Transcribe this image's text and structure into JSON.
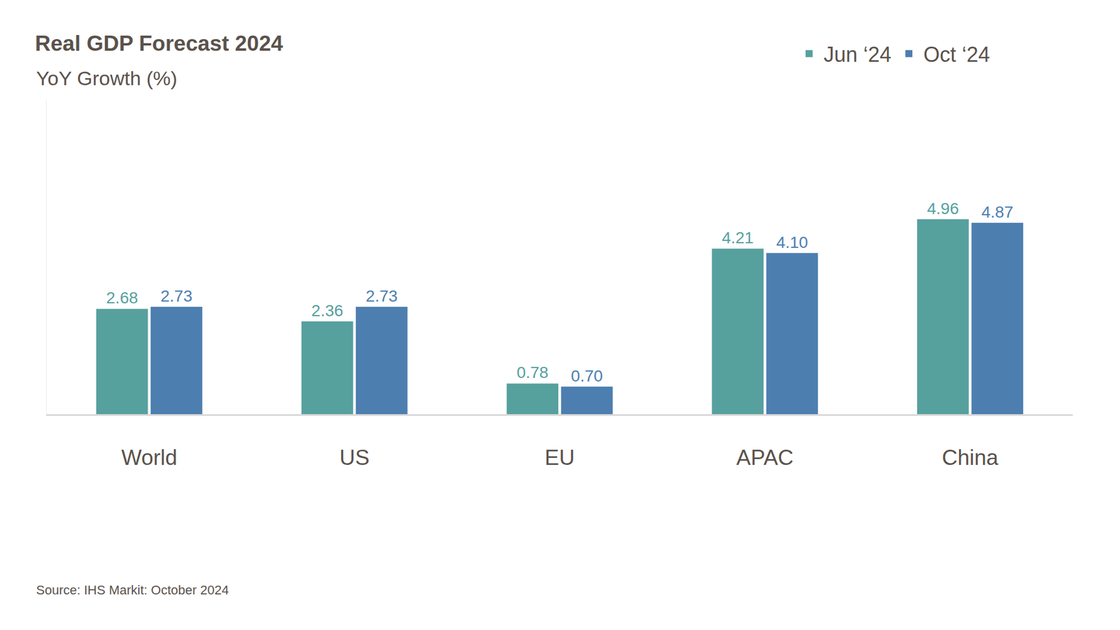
{
  "chart_data": {
    "type": "bar",
    "title": "Real GDP Forecast 2024",
    "subtitle": "YoY Growth (%)",
    "source": "Source: IHS Markit: October 2024",
    "categories": [
      "World",
      "US",
      "EU",
      "APAC",
      "China"
    ],
    "series": [
      {
        "name": "Jun ‘24",
        "color": "#56a09e",
        "values": [
          2.68,
          2.36,
          0.78,
          4.21,
          4.96
        ],
        "value_labels": [
          "2.68",
          "2.36",
          "0.78",
          "4.21",
          "4.96"
        ]
      },
      {
        "name": "Oct ‘24",
        "color": "#4d7eb0",
        "values": [
          2.73,
          2.73,
          0.7,
          4.1,
          4.87
        ],
        "value_labels": [
          "2.73",
          "2.73",
          "0.70",
          "4.10",
          "4.87"
        ]
      }
    ],
    "ylim": [
      0,
      8
    ],
    "grid": false,
    "legend": "top right",
    "data_labels": true,
    "tick_labels": "x"
  }
}
